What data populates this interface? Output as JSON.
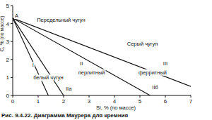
{
  "chart_data": {
    "type": "line",
    "title": "Рис. 9.4.22. Диаграмма Маурера для кремния",
    "x_label": "Si, % (по массе)",
    "y_label": "C, % (по массе)",
    "xlim": [
      0,
      7
    ],
    "ylim": [
      0,
      5
    ],
    "xticks": [
      0,
      1,
      2,
      3,
      4,
      5,
      6,
      7
    ],
    "yticks": [
      0,
      1,
      2,
      3,
      4,
      5
    ],
    "color": "#111111",
    "series": [
      {
        "x": [
          0,
          1.4
        ],
        "values": [
          4.3,
          0
        ]
      },
      {
        "x": [
          0,
          2.0
        ],
        "values": [
          4.3,
          0
        ]
      },
      {
        "x": [
          0,
          5.4
        ],
        "values": [
          4.3,
          0
        ]
      },
      {
        "x": [
          0,
          7
        ],
        "values": [
          4.3,
          0.5
        ]
      }
    ],
    "annotations": [
      {
        "text": "A",
        "x": 0.15,
        "y": 4.45
      },
      {
        "text": "Передельный чугун",
        "x": 1.9,
        "y": 4.2
      },
      {
        "text": "Серый чугун",
        "x": 5.1,
        "y": 2.9
      },
      {
        "text": "I",
        "x": 0.8,
        "y": 1.7
      },
      {
        "text": "II",
        "x": 2.7,
        "y": 1.8
      },
      {
        "text": "III",
        "x": 6.0,
        "y": 1.8
      },
      {
        "text": "белый чугун",
        "x": 1.4,
        "y": 1.0
      },
      {
        "text": "перлитный",
        "x": 3.1,
        "y": 1.3
      },
      {
        "text": "ферритный",
        "x": 5.5,
        "y": 1.3
      },
      {
        "text": "IIа",
        "x": 2.2,
        "y": 0.4
      },
      {
        "text": "IIб",
        "x": 5.6,
        "y": 0.45
      }
    ]
  }
}
